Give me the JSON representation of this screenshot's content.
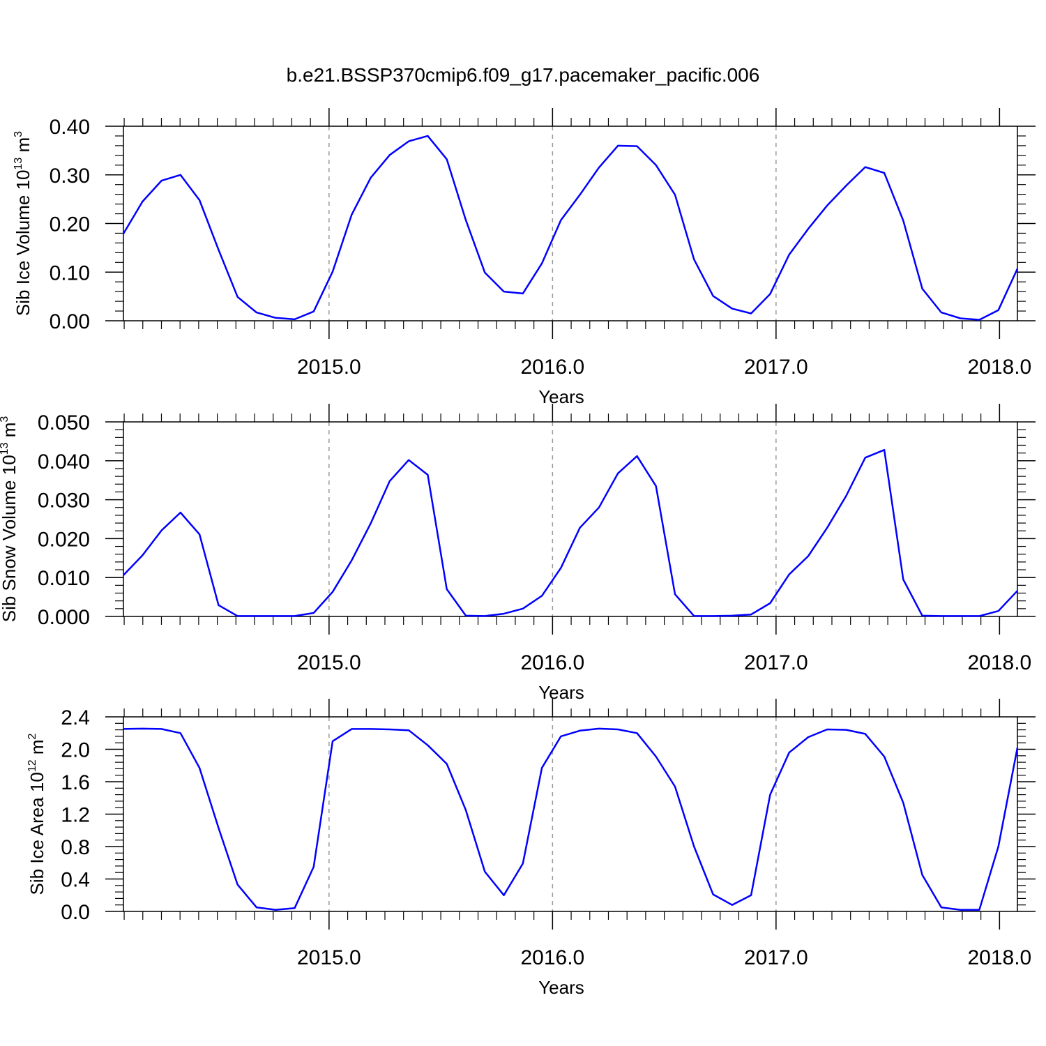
{
  "title": "b.e21.BSSP370cmip6.f09_g17.pacemaker_pacific.006",
  "colors": {
    "line": "#0000ff",
    "axes": "#000000",
    "gridline": "#999999"
  },
  "chart_data": [
    {
      "type": "line",
      "ylabel": {
        "text": "Sib Ice Volume 10",
        "exponent": "13",
        "unit": "m",
        "unit_exponent": "3"
      },
      "xlabel": "Years",
      "xlim": [
        2014.08,
        2018.08
      ],
      "ylim": [
        0,
        0.4
      ],
      "yticks": [
        0,
        0.1,
        0.2,
        0.3,
        0.4
      ],
      "ytick_labels": [
        "0.00",
        "0.10",
        "0.20",
        "0.30",
        "0.40"
      ],
      "xticks": [
        2015,
        2016,
        2017,
        2018
      ],
      "xtick_labels": [
        "2015.0",
        "2016.0",
        "2017.0",
        "2018.0"
      ],
      "vgrid": [
        2015,
        2016,
        2017
      ],
      "series": [
        {
          "values": [
            0.179,
            0.245,
            0.288,
            0.3,
            0.248,
            0.146,
            0.049,
            0.017,
            0.006,
            0.003,
            0.019,
            0.101,
            0.218,
            0.294,
            0.341,
            0.369,
            0.38,
            0.332,
            0.207,
            0.099,
            0.06,
            0.056,
            0.118,
            0.207,
            0.259,
            0.315,
            0.36,
            0.359,
            0.32,
            0.259,
            0.126,
            0.051,
            0.025,
            0.015,
            0.055,
            0.136,
            0.189,
            0.237,
            0.278,
            0.316,
            0.304,
            0.206,
            0.066,
            0.017,
            0.005,
            0.002,
            0.022,
            0.107
          ]
        }
      ]
    },
    {
      "type": "line",
      "ylabel": {
        "text": "Sib Snow Volume 10",
        "exponent": "13",
        "unit": "m",
        "unit_exponent": "3"
      },
      "xlabel": "Years",
      "xlim": [
        2014.08,
        2018.08
      ],
      "ylim": [
        0,
        0.05
      ],
      "yticks": [
        0,
        0.01,
        0.02,
        0.03,
        0.04,
        0.05
      ],
      "ytick_labels": [
        "0.000",
        "0.010",
        "0.020",
        "0.030",
        "0.040",
        "0.050"
      ],
      "xticks": [
        2015,
        2016,
        2017,
        2018
      ],
      "xtick_labels": [
        "2015.0",
        "2016.0",
        "2017.0",
        "2018.0"
      ],
      "vgrid": [
        2015,
        2016,
        2017
      ],
      "series": [
        {
          "values": [
            0.0106,
            0.0157,
            0.0221,
            0.0267,
            0.0211,
            0.0029,
            0.0001,
            0.0001,
            0.0001,
            0.0001,
            0.0009,
            0.0063,
            0.0144,
            0.0239,
            0.0348,
            0.0402,
            0.0364,
            0.007,
            0.0002,
            0.0001,
            0.0007,
            0.002,
            0.0053,
            0.0125,
            0.0228,
            0.028,
            0.0368,
            0.0412,
            0.0335,
            0.0057,
            0.0001,
            0.0001,
            0.0002,
            0.0005,
            0.0034,
            0.0108,
            0.0155,
            0.0228,
            0.031,
            0.0408,
            0.0428,
            0.0095,
            0.0002,
            0.0001,
            0.0001,
            0.0001,
            0.0014,
            0.0066
          ]
        }
      ]
    },
    {
      "type": "line",
      "ylabel": {
        "text": "Sib Ice Area 10",
        "exponent": "12",
        "unit": "m",
        "unit_exponent": "2"
      },
      "xlabel": "Years",
      "xlim": [
        2014.08,
        2018.08
      ],
      "ylim": [
        0,
        2.4
      ],
      "yticks": [
        0,
        0.4,
        0.8,
        1.2,
        1.6,
        2.0,
        2.4
      ],
      "ytick_labels": [
        "0.0",
        "0.4",
        "0.8",
        "1.2",
        "1.6",
        "2.0",
        "2.4"
      ],
      "xticks": [
        2015,
        2016,
        2017,
        2018
      ],
      "xtick_labels": [
        "2015.0",
        "2016.0",
        "2017.0",
        "2018.0"
      ],
      "vgrid": [
        2015,
        2016,
        2017
      ],
      "series": [
        {
          "values": [
            2.25,
            2.255,
            2.25,
            2.2,
            1.77,
            1.03,
            0.33,
            0.05,
            0.02,
            0.04,
            0.55,
            2.1,
            2.25,
            2.25,
            2.245,
            2.235,
            2.05,
            1.82,
            1.25,
            0.49,
            0.2,
            0.59,
            1.77,
            2.16,
            2.23,
            2.255,
            2.245,
            2.2,
            1.91,
            1.54,
            0.8,
            0.21,
            0.08,
            0.2,
            1.44,
            1.96,
            2.15,
            2.245,
            2.24,
            2.19,
            1.91,
            1.34,
            0.45,
            0.05,
            0.02,
            0.02,
            0.8,
            2.02
          ]
        }
      ]
    }
  ]
}
